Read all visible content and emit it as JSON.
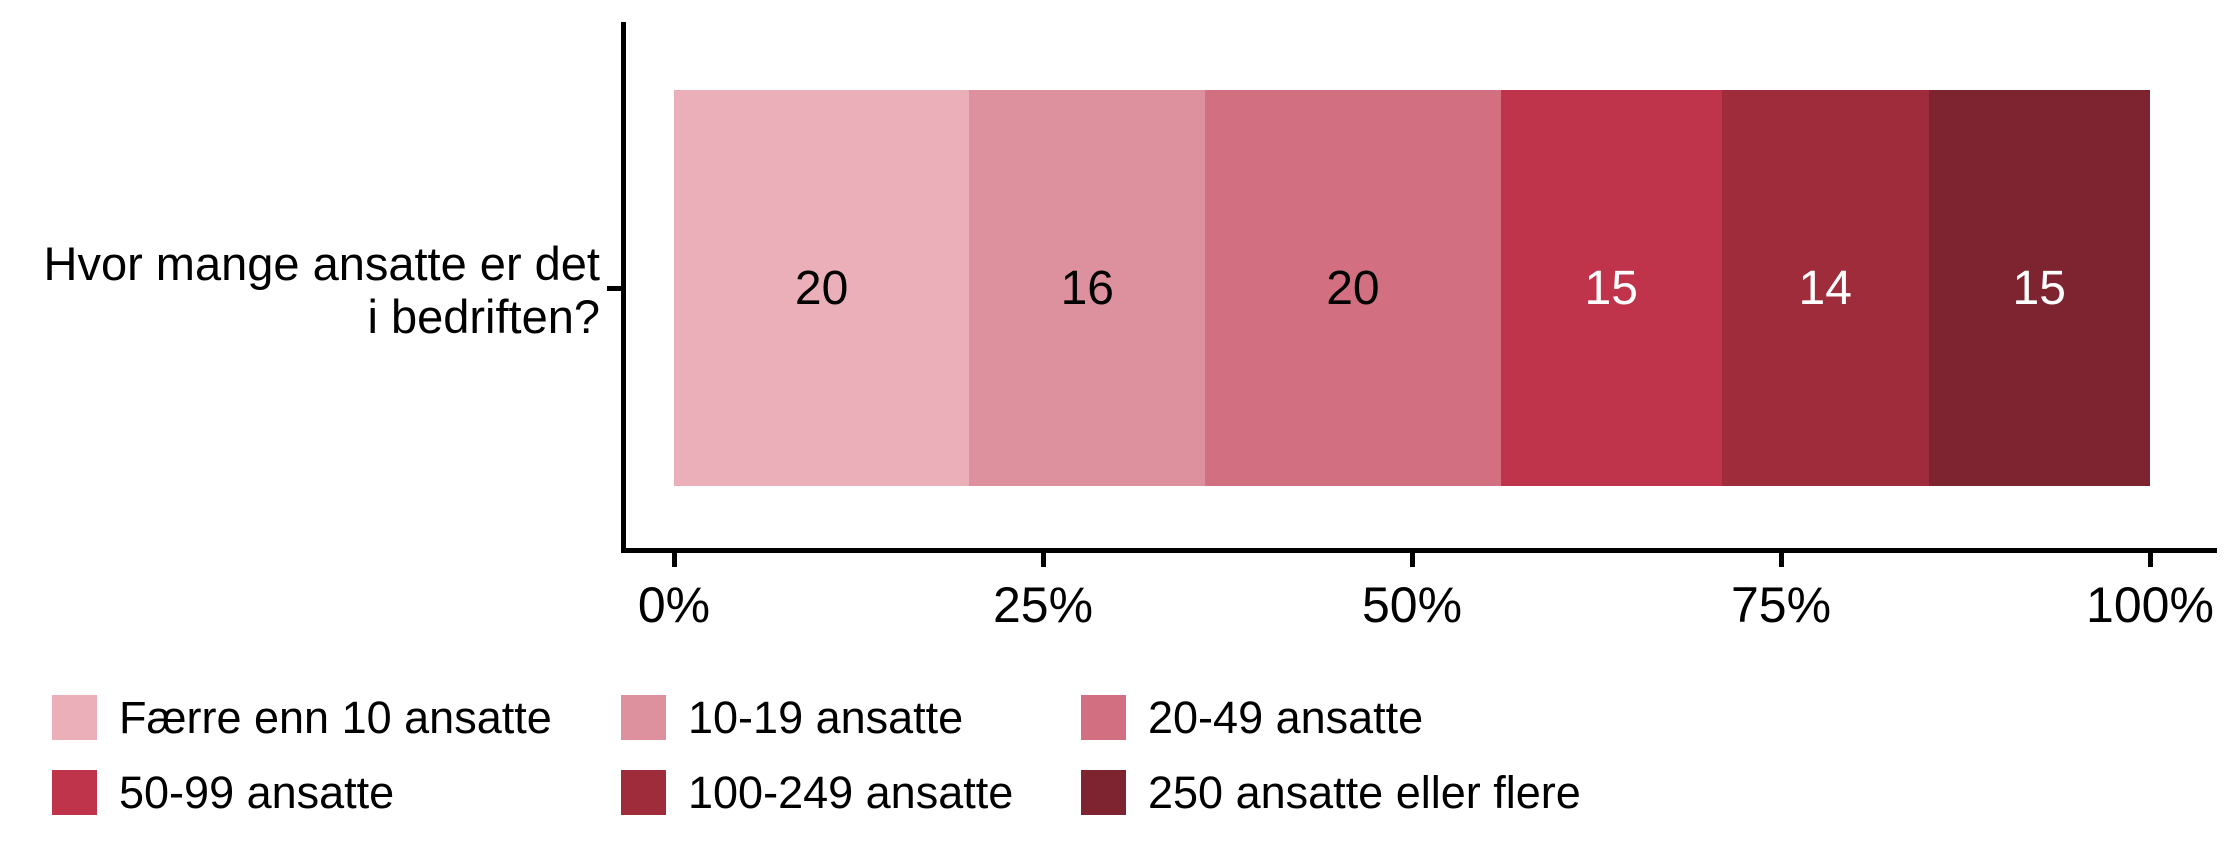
{
  "chart_data": {
    "type": "bar",
    "orientation": "horizontal_stacked_100pct",
    "title": "",
    "ylabel": "Hvor mange ansatte er det i bedriften?",
    "ylabel_lines": [
      "Hvor mange ansatte er det",
      "i bedriften?"
    ],
    "categories": [
      "Hvor mange ansatte er det i bedriften?"
    ],
    "series": [
      {
        "name": "Færre enn 10 ansatte",
        "value": 20,
        "color": "#EAAFB8",
        "label_color": "#000000"
      },
      {
        "name": "10-19 ansatte",
        "value": 16,
        "color": "#DD909D",
        "label_color": "#000000"
      },
      {
        "name": "20-49 ansatte",
        "value": 20,
        "color": "#D26F80",
        "label_color": "#000000"
      },
      {
        "name": "50-99 ansatte",
        "value": 15,
        "color": "#BF344A",
        "label_color": "#FFFFFF"
      },
      {
        "name": "100-249 ansatte",
        "value": 14,
        "color": "#9E2C3B",
        "label_color": "#FFFFFF"
      },
      {
        "name": "250 ansatte eller flere",
        "value": 15,
        "color": "#7E2330",
        "label_color": "#FFFFFF"
      }
    ],
    "x_ticks": [
      {
        "label": "0%",
        "value": 0
      },
      {
        "label": "25%",
        "value": 25
      },
      {
        "label": "50%",
        "value": 50
      },
      {
        "label": "75%",
        "value": 75
      },
      {
        "label": "100%",
        "value": 100
      }
    ],
    "xlim": [
      0,
      100
    ],
    "grid": false,
    "legend_position": "bottom"
  }
}
